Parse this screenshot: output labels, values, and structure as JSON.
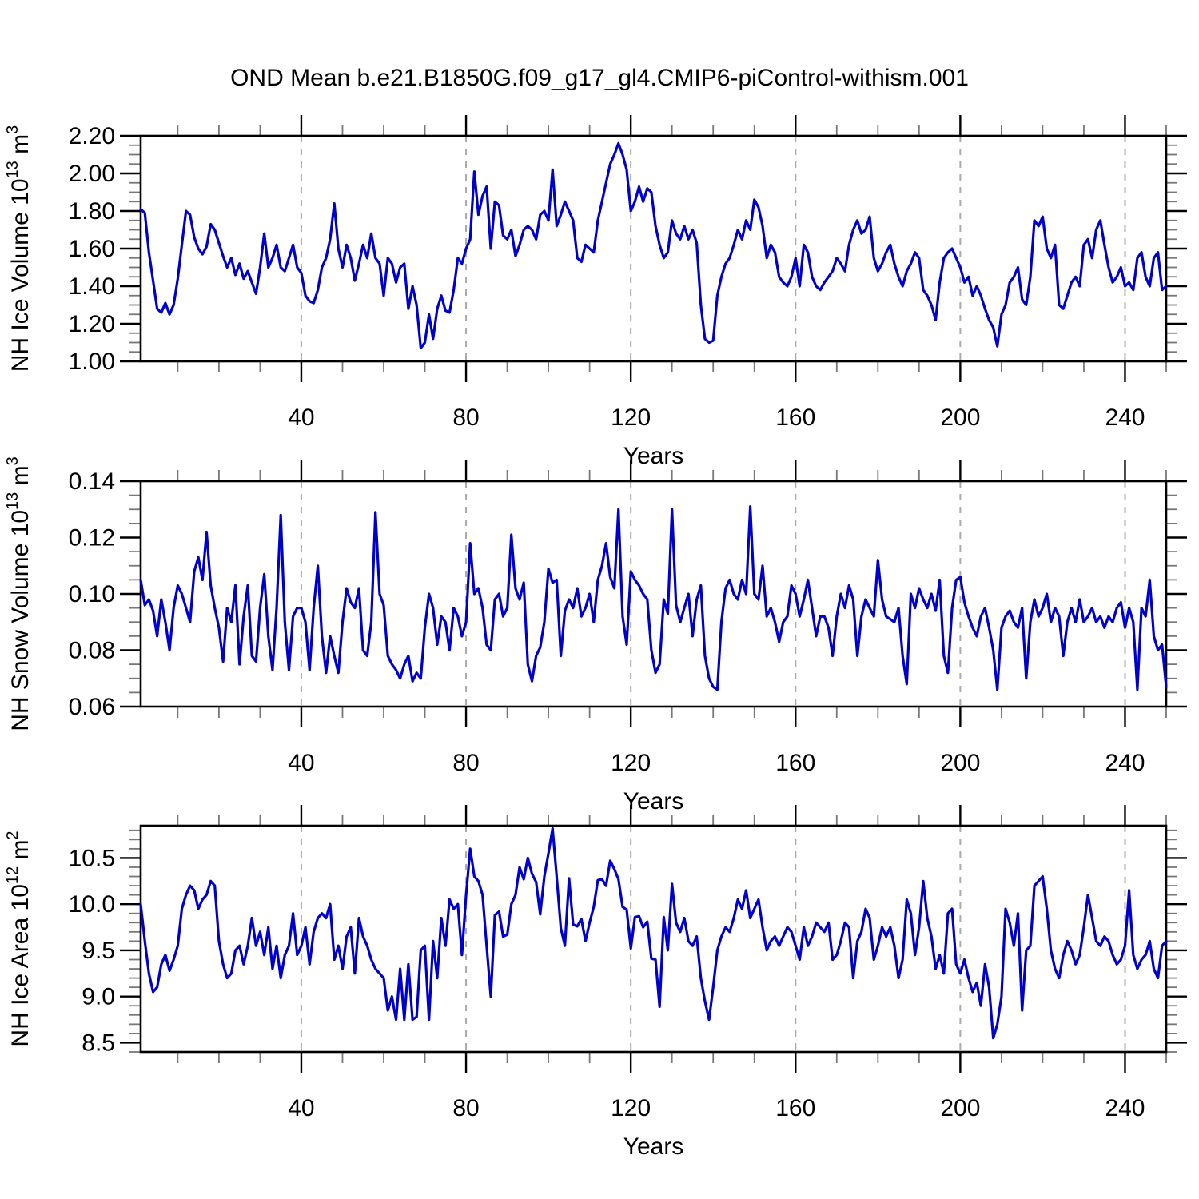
{
  "title": "OND Mean b.e21.B1850G.f09_g17_gl4.CMIP6-piControl-withism.001",
  "xlabel": "Years",
  "colors": {
    "line": "#0000CD",
    "axis": "#000000",
    "minor_tick": "#777777",
    "gridline": "#aaaaaa",
    "background": "#ffffff"
  },
  "x_start": 1,
  "x_end": 250,
  "xticks": [
    40,
    80,
    120,
    160,
    200,
    240
  ],
  "xtick_labels": [
    "40",
    "80",
    "120",
    "160",
    "200",
    "240"
  ],
  "x_minor_step": 10,
  "chart_data": [
    {
      "id": "ice-volume",
      "type": "line",
      "ylabel": "NH Ice Volume 10^13 m^3",
      "ylabel_parts": [
        {
          "t": "NH Ice Volume 10"
        },
        {
          "t": "13",
          "sup": true
        },
        {
          "t": " m"
        },
        {
          "t": "3",
          "sup": true
        }
      ],
      "ylim": [
        1.0,
        2.2
      ],
      "yticks": [
        1.0,
        1.2,
        1.4,
        1.6,
        1.8,
        2.0,
        2.2
      ],
      "ytick_labels": [
        "1.00",
        "1.20",
        "1.40",
        "1.60",
        "1.80",
        "2.00",
        "2.20"
      ],
      "y_minor_step": 0.05,
      "grid": true,
      "legend": "none",
      "values": [
        1.81,
        1.79,
        1.58,
        1.43,
        1.28,
        1.26,
        1.31,
        1.25,
        1.3,
        1.44,
        1.62,
        1.8,
        1.78,
        1.66,
        1.6,
        1.57,
        1.61,
        1.73,
        1.7,
        1.63,
        1.56,
        1.5,
        1.55,
        1.46,
        1.52,
        1.44,
        1.48,
        1.42,
        1.36,
        1.5,
        1.68,
        1.5,
        1.55,
        1.62,
        1.5,
        1.48,
        1.55,
        1.62,
        1.5,
        1.47,
        1.35,
        1.32,
        1.31,
        1.38,
        1.5,
        1.55,
        1.65,
        1.84,
        1.6,
        1.5,
        1.62,
        1.55,
        1.43,
        1.52,
        1.62,
        1.55,
        1.68,
        1.55,
        1.52,
        1.35,
        1.55,
        1.52,
        1.42,
        1.5,
        1.52,
        1.28,
        1.4,
        1.3,
        1.07,
        1.1,
        1.25,
        1.12,
        1.28,
        1.35,
        1.27,
        1.26,
        1.38,
        1.55,
        1.52,
        1.6,
        1.65,
        2.01,
        1.78,
        1.88,
        1.93,
        1.6,
        1.85,
        1.83,
        1.67,
        1.65,
        1.7,
        1.56,
        1.62,
        1.7,
        1.72,
        1.7,
        1.65,
        1.78,
        1.8,
        1.75,
        2.02,
        1.72,
        1.78,
        1.85,
        1.8,
        1.75,
        1.55,
        1.53,
        1.62,
        1.6,
        1.58,
        1.75,
        1.85,
        1.95,
        2.05,
        2.1,
        2.16,
        2.1,
        2.02,
        1.8,
        1.85,
        1.93,
        1.85,
        1.92,
        1.9,
        1.72,
        1.62,
        1.55,
        1.58,
        1.75,
        1.68,
        1.65,
        1.72,
        1.65,
        1.7,
        1.63,
        1.3,
        1.12,
        1.1,
        1.11,
        1.35,
        1.45,
        1.52,
        1.55,
        1.62,
        1.7,
        1.65,
        1.75,
        1.7,
        1.86,
        1.82,
        1.72,
        1.55,
        1.62,
        1.58,
        1.45,
        1.42,
        1.4,
        1.45,
        1.55,
        1.4,
        1.62,
        1.58,
        1.45,
        1.4,
        1.38,
        1.42,
        1.45,
        1.48,
        1.55,
        1.52,
        1.48,
        1.62,
        1.7,
        1.75,
        1.68,
        1.7,
        1.77,
        1.55,
        1.48,
        1.52,
        1.58,
        1.62,
        1.52,
        1.45,
        1.4,
        1.48,
        1.52,
        1.58,
        1.55,
        1.38,
        1.35,
        1.3,
        1.22,
        1.42,
        1.55,
        1.58,
        1.6,
        1.55,
        1.5,
        1.42,
        1.45,
        1.35,
        1.4,
        1.35,
        1.28,
        1.22,
        1.18,
        1.08,
        1.25,
        1.3,
        1.42,
        1.45,
        1.5,
        1.33,
        1.3,
        1.45,
        1.75,
        1.72,
        1.77,
        1.6,
        1.55,
        1.62,
        1.3,
        1.28,
        1.35,
        1.42,
        1.45,
        1.4,
        1.62,
        1.65,
        1.55,
        1.7,
        1.75,
        1.62,
        1.5,
        1.42,
        1.45,
        1.5,
        1.4,
        1.42,
        1.38,
        1.55,
        1.58,
        1.45,
        1.4,
        1.55,
        1.58,
        1.38,
        1.4
      ]
    },
    {
      "id": "snow-volume",
      "type": "line",
      "ylabel": "NH Snow Volume 10^13 m^3",
      "ylabel_parts": [
        {
          "t": "NH Snow Volume 10"
        },
        {
          "t": "13",
          "sup": true
        },
        {
          "t": " m"
        },
        {
          "t": "3",
          "sup": true
        }
      ],
      "ylim": [
        0.06,
        0.14
      ],
      "yticks": [
        0.06,
        0.08,
        0.1,
        0.12,
        0.14
      ],
      "ytick_labels": [
        "0.06",
        "0.08",
        "0.10",
        "0.12",
        "0.14"
      ],
      "y_minor_step": 0.005,
      "grid": true,
      "legend": "none",
      "values": [
        0.105,
        0.096,
        0.098,
        0.094,
        0.085,
        0.098,
        0.09,
        0.08,
        0.095,
        0.103,
        0.1,
        0.095,
        0.09,
        0.108,
        0.113,
        0.105,
        0.122,
        0.103,
        0.095,
        0.088,
        0.076,
        0.095,
        0.09,
        0.103,
        0.075,
        0.092,
        0.103,
        0.078,
        0.076,
        0.095,
        0.107,
        0.085,
        0.073,
        0.095,
        0.128,
        0.09,
        0.073,
        0.092,
        0.095,
        0.095,
        0.09,
        0.073,
        0.095,
        0.11,
        0.085,
        0.072,
        0.085,
        0.078,
        0.072,
        0.09,
        0.102,
        0.097,
        0.095,
        0.102,
        0.08,
        0.078,
        0.09,
        0.129,
        0.1,
        0.096,
        0.078,
        0.075,
        0.073,
        0.07,
        0.075,
        0.078,
        0.069,
        0.072,
        0.07,
        0.088,
        0.1,
        0.095,
        0.082,
        0.092,
        0.09,
        0.08,
        0.095,
        0.092,
        0.085,
        0.09,
        0.118,
        0.1,
        0.102,
        0.095,
        0.082,
        0.08,
        0.098,
        0.1,
        0.092,
        0.095,
        0.121,
        0.102,
        0.098,
        0.104,
        0.075,
        0.069,
        0.078,
        0.081,
        0.09,
        0.109,
        0.104,
        0.105,
        0.078,
        0.094,
        0.098,
        0.095,
        0.102,
        0.092,
        0.095,
        0.1,
        0.09,
        0.105,
        0.11,
        0.118,
        0.106,
        0.102,
        0.13,
        0.092,
        0.082,
        0.108,
        0.105,
        0.103,
        0.1,
        0.098,
        0.08,
        0.072,
        0.075,
        0.098,
        0.093,
        0.13,
        0.096,
        0.09,
        0.095,
        0.1,
        0.085,
        0.098,
        0.103,
        0.078,
        0.07,
        0.067,
        0.066,
        0.09,
        0.102,
        0.105,
        0.1,
        0.098,
        0.105,
        0.1,
        0.131,
        0.1,
        0.098,
        0.11,
        0.092,
        0.095,
        0.09,
        0.083,
        0.09,
        0.092,
        0.103,
        0.1,
        0.092,
        0.098,
        0.105,
        0.095,
        0.085,
        0.092,
        0.092,
        0.088,
        0.078,
        0.092,
        0.1,
        0.095,
        0.103,
        0.098,
        0.078,
        0.092,
        0.098,
        0.095,
        0.092,
        0.112,
        0.098,
        0.092,
        0.091,
        0.09,
        0.095,
        0.078,
        0.068,
        0.1,
        0.095,
        0.102,
        0.098,
        0.095,
        0.1,
        0.094,
        0.105,
        0.078,
        0.072,
        0.095,
        0.105,
        0.106,
        0.097,
        0.092,
        0.088,
        0.085,
        0.092,
        0.095,
        0.088,
        0.08,
        0.066,
        0.088,
        0.092,
        0.094,
        0.09,
        0.088,
        0.095,
        0.07,
        0.09,
        0.098,
        0.092,
        0.095,
        0.1,
        0.09,
        0.095,
        0.092,
        0.078,
        0.09,
        0.095,
        0.09,
        0.098,
        0.09,
        0.092,
        0.095,
        0.09,
        0.092,
        0.088,
        0.092,
        0.09,
        0.095,
        0.097,
        0.088,
        0.095,
        0.09,
        0.066,
        0.095,
        0.092,
        0.105,
        0.085,
        0.08,
        0.082,
        0.067
      ]
    },
    {
      "id": "ice-area",
      "type": "line",
      "ylabel": "NH Ice Area 10^12 m^2",
      "ylabel_parts": [
        {
          "t": "NH Ice Area 10"
        },
        {
          "t": "12",
          "sup": true
        },
        {
          "t": " m"
        },
        {
          "t": "2",
          "sup": true
        }
      ],
      "ylim": [
        8.4,
        10.85
      ],
      "yticks": [
        8.5,
        9.0,
        9.5,
        10.0,
        10.5
      ],
      "ytick_labels": [
        "8.5",
        "9.0",
        "9.5",
        "10.0",
        "10.5"
      ],
      "y_minor_step": 0.1,
      "grid": true,
      "legend": "none",
      "values": [
        10.0,
        9.6,
        9.25,
        9.05,
        9.1,
        9.35,
        9.45,
        9.28,
        9.4,
        9.55,
        9.95,
        10.1,
        10.2,
        10.15,
        9.95,
        10.05,
        10.1,
        10.25,
        10.2,
        9.6,
        9.35,
        9.2,
        9.25,
        9.5,
        9.55,
        9.35,
        9.55,
        9.85,
        9.55,
        9.7,
        9.45,
        9.75,
        9.3,
        9.55,
        9.2,
        9.45,
        9.55,
        9.9,
        9.45,
        9.55,
        9.75,
        9.35,
        9.7,
        9.85,
        9.9,
        9.85,
        10.0,
        9.4,
        9.55,
        9.3,
        9.65,
        9.75,
        9.25,
        9.85,
        9.65,
        9.55,
        9.4,
        9.3,
        9.25,
        9.2,
        8.85,
        9.0,
        8.75,
        9.3,
        8.75,
        9.35,
        8.75,
        8.78,
        9.5,
        9.55,
        8.75,
        9.6,
        9.2,
        9.85,
        9.55,
        10.05,
        9.95,
        10.0,
        9.45,
        10.1,
        10.6,
        10.3,
        10.25,
        10.1,
        9.55,
        9.0,
        9.88,
        9.92,
        9.65,
        9.67,
        10.0,
        10.1,
        10.4,
        10.27,
        10.5,
        10.33,
        10.24,
        9.89,
        10.3,
        10.55,
        10.82,
        10.3,
        9.74,
        9.55,
        10.28,
        9.78,
        9.76,
        9.84,
        9.6,
        9.8,
        9.97,
        10.26,
        10.27,
        10.2,
        10.47,
        10.38,
        10.27,
        9.97,
        9.94,
        9.52,
        9.86,
        9.87,
        9.75,
        9.81,
        9.41,
        9.4,
        8.89,
        9.86,
        9.5,
        10.22,
        9.8,
        9.7,
        9.85,
        9.6,
        9.55,
        9.65,
        9.2,
        8.95,
        8.75,
        9.1,
        9.5,
        9.65,
        9.75,
        9.7,
        9.85,
        10.05,
        9.95,
        10.15,
        9.85,
        9.95,
        10.05,
        9.75,
        9.5,
        9.6,
        9.65,
        9.55,
        9.65,
        9.75,
        9.7,
        9.55,
        9.4,
        9.75,
        9.55,
        9.65,
        9.8,
        9.75,
        9.7,
        9.8,
        9.4,
        9.45,
        9.6,
        9.8,
        9.75,
        9.2,
        9.6,
        9.7,
        9.95,
        9.85,
        9.4,
        9.55,
        9.75,
        9.65,
        9.75,
        9.55,
        9.2,
        9.4,
        10.05,
        9.9,
        9.45,
        9.75,
        10.25,
        9.85,
        9.65,
        9.3,
        9.45,
        9.25,
        9.9,
        9.95,
        9.35,
        9.25,
        9.4,
        9.2,
        9.05,
        9.15,
        8.9,
        9.35,
        9.1,
        8.55,
        8.7,
        9.0,
        9.95,
        9.8,
        9.55,
        9.9,
        8.85,
        9.5,
        9.55,
        10.2,
        10.25,
        10.3,
        9.95,
        9.5,
        9.3,
        9.2,
        9.45,
        9.6,
        9.5,
        9.35,
        9.45,
        9.75,
        10.1,
        9.85,
        9.6,
        9.55,
        9.65,
        9.6,
        9.45,
        9.35,
        9.4,
        9.55,
        10.15,
        9.45,
        9.3,
        9.4,
        9.45,
        9.6,
        9.3,
        9.2,
        9.55,
        9.6
      ]
    }
  ]
}
